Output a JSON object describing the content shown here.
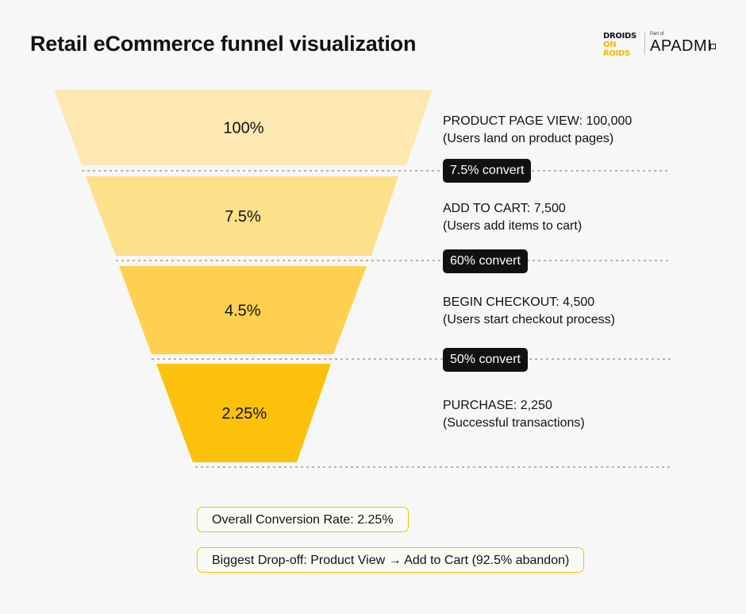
{
  "title": "Retail eCommerce funnel visualization",
  "logo": {
    "line1": "DROIDS",
    "line2": "ON ROIDS",
    "part_of": "Part of",
    "brand": "APADMI"
  },
  "colors": {
    "stage1": "#fde8b2",
    "stage2": "#fde08a",
    "stage3": "#fdd04f",
    "stage4": "#fcc20b",
    "pill_bg": "#111111",
    "box_border": "#f5c400"
  },
  "chart_data": {
    "type": "funnel",
    "stages": [
      {
        "percent_label": "100%",
        "value": 100,
        "heading": "PRODUCT PAGE VIEW: 100,000",
        "description": "(Users land on product pages)"
      },
      {
        "percent_label": "7.5%",
        "value": 7.5,
        "heading": "ADD TO CART: 7,500",
        "description": "(Users add items to cart)"
      },
      {
        "percent_label": "4.5%",
        "value": 4.5,
        "heading": "BEGIN CHECKOUT: 4,500",
        "description": "(Users start checkout process)"
      },
      {
        "percent_label": "2.25%",
        "value": 2.25,
        "heading": "PURCHASE: 2,250",
        "description": "(Successful transactions)"
      }
    ],
    "conversions": [
      "7.5% convert",
      "60% convert",
      "50% convert"
    ]
  },
  "summary": {
    "overall": "Overall Conversion Rate: 2.25%",
    "dropoff": "Biggest Drop-off: Product View → Add to Cart (92.5% abandon)"
  }
}
